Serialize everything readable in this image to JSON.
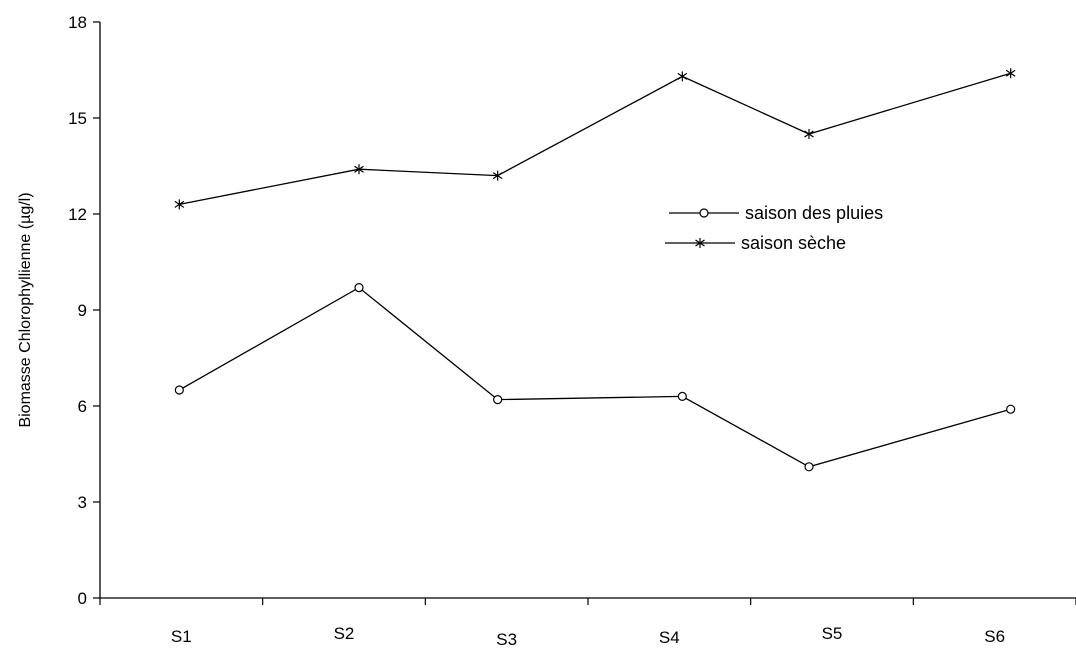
{
  "chart_data": {
    "type": "line",
    "title": "",
    "xlabel": "",
    "ylabel": "Biomasse Chlorophyllienne (µg/l)",
    "categories": [
      "S1",
      "S2",
      "S3",
      "S4",
      "S5",
      "S6"
    ],
    "ylim": [
      0,
      18
    ],
    "yticks": [
      0,
      3,
      6,
      9,
      12,
      15,
      18
    ],
    "yticks_labels": [
      "0",
      "3",
      "6",
      "9",
      "12",
      "15",
      "18"
    ],
    "grid": false,
    "legend_position": "right-center",
    "series": [
      {
        "name": "saison des pluies",
        "marker": "circle",
        "values": [
          6.5,
          9.7,
          6.2,
          6.3,
          4.1,
          5.9
        ],
        "color": "#000000"
      },
      {
        "name": "saison sèche",
        "marker": "asterisk",
        "values": [
          12.3,
          13.4,
          13.2,
          16.3,
          14.5,
          16.4
        ],
        "color": "#000000"
      }
    ]
  }
}
